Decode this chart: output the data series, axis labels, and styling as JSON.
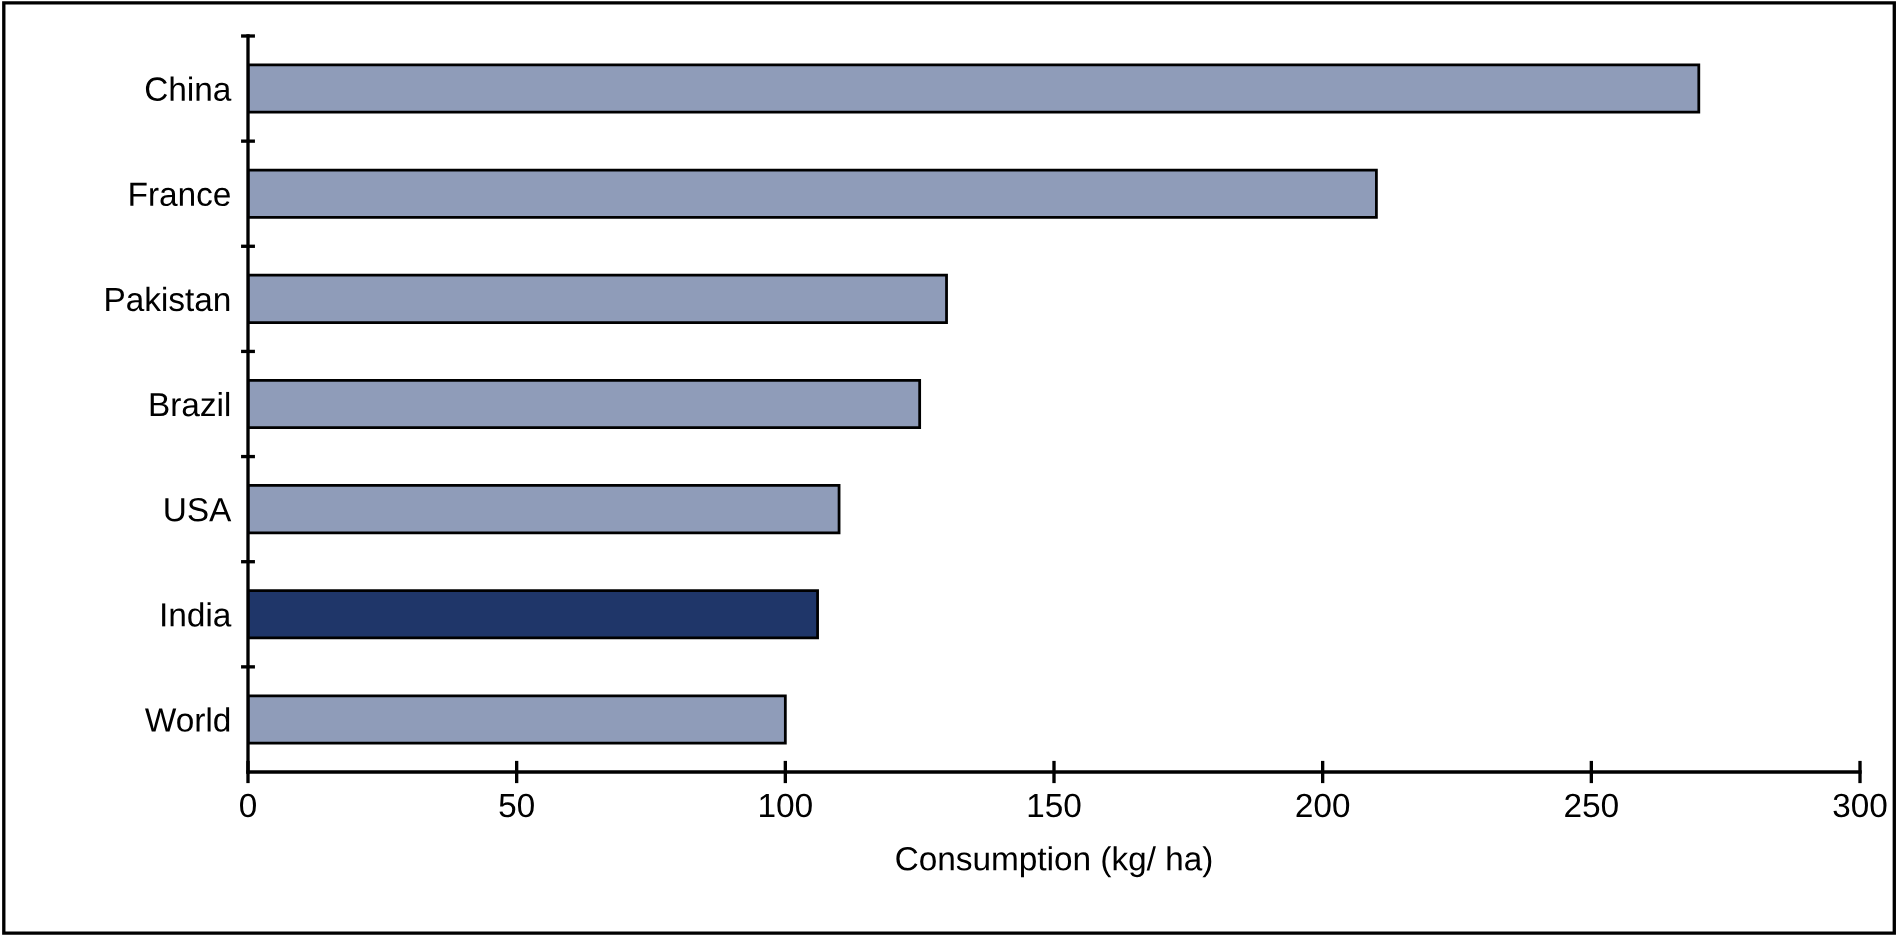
{
  "chart_data": {
    "type": "bar",
    "orientation": "horizontal",
    "xlabel": "Consumption (kg/ ha)",
    "categories": [
      "China",
      "France",
      "Pakistan",
      "Brazil",
      "USA",
      "India",
      "World"
    ],
    "values": [
      270,
      210,
      130,
      125,
      110,
      106,
      100
    ],
    "colors": [
      "#8f9cb9",
      "#8f9cb9",
      "#8f9cb9",
      "#8f9cb9",
      "#8f9cb9",
      "#1f3669",
      "#8f9cb9"
    ],
    "xlim": [
      0,
      300
    ],
    "xticks": [
      0,
      50,
      100,
      150,
      200,
      250,
      300
    ],
    "grid": false,
    "legend": false
  }
}
